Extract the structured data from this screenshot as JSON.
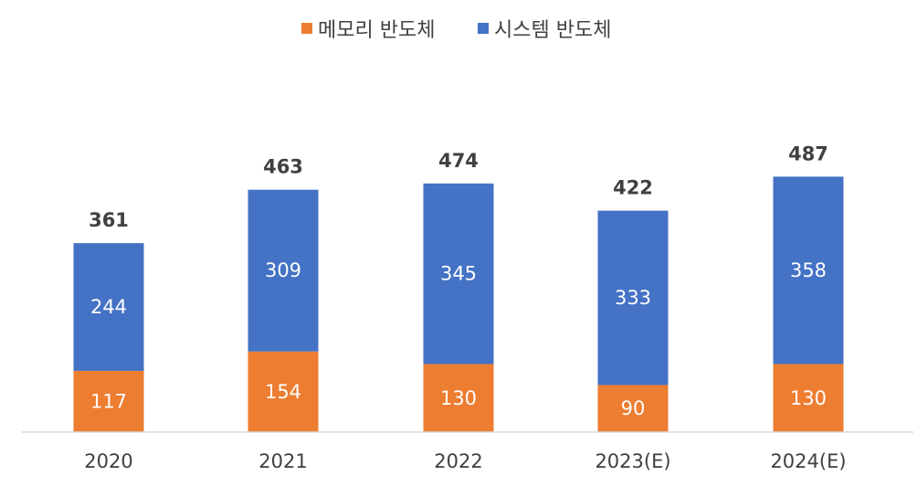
{
  "chart_data": {
    "type": "bar",
    "stacked": true,
    "categories": [
      "2020",
      "2021",
      "2022",
      "2023(E)",
      "2024(E)"
    ],
    "series": [
      {
        "name": "메모리 반도체",
        "values": [
          117,
          154,
          130,
          90,
          130
        ],
        "color": "#ED7D31"
      },
      {
        "name": "시스템 반도체",
        "values": [
          244,
          309,
          345,
          333,
          358
        ],
        "color": "#4472C4"
      }
    ],
    "totals": [
      361,
      463,
      474,
      422,
      487
    ],
    "legend_position": "top-center",
    "grid": false,
    "ylim": [
      0,
      600
    ]
  }
}
